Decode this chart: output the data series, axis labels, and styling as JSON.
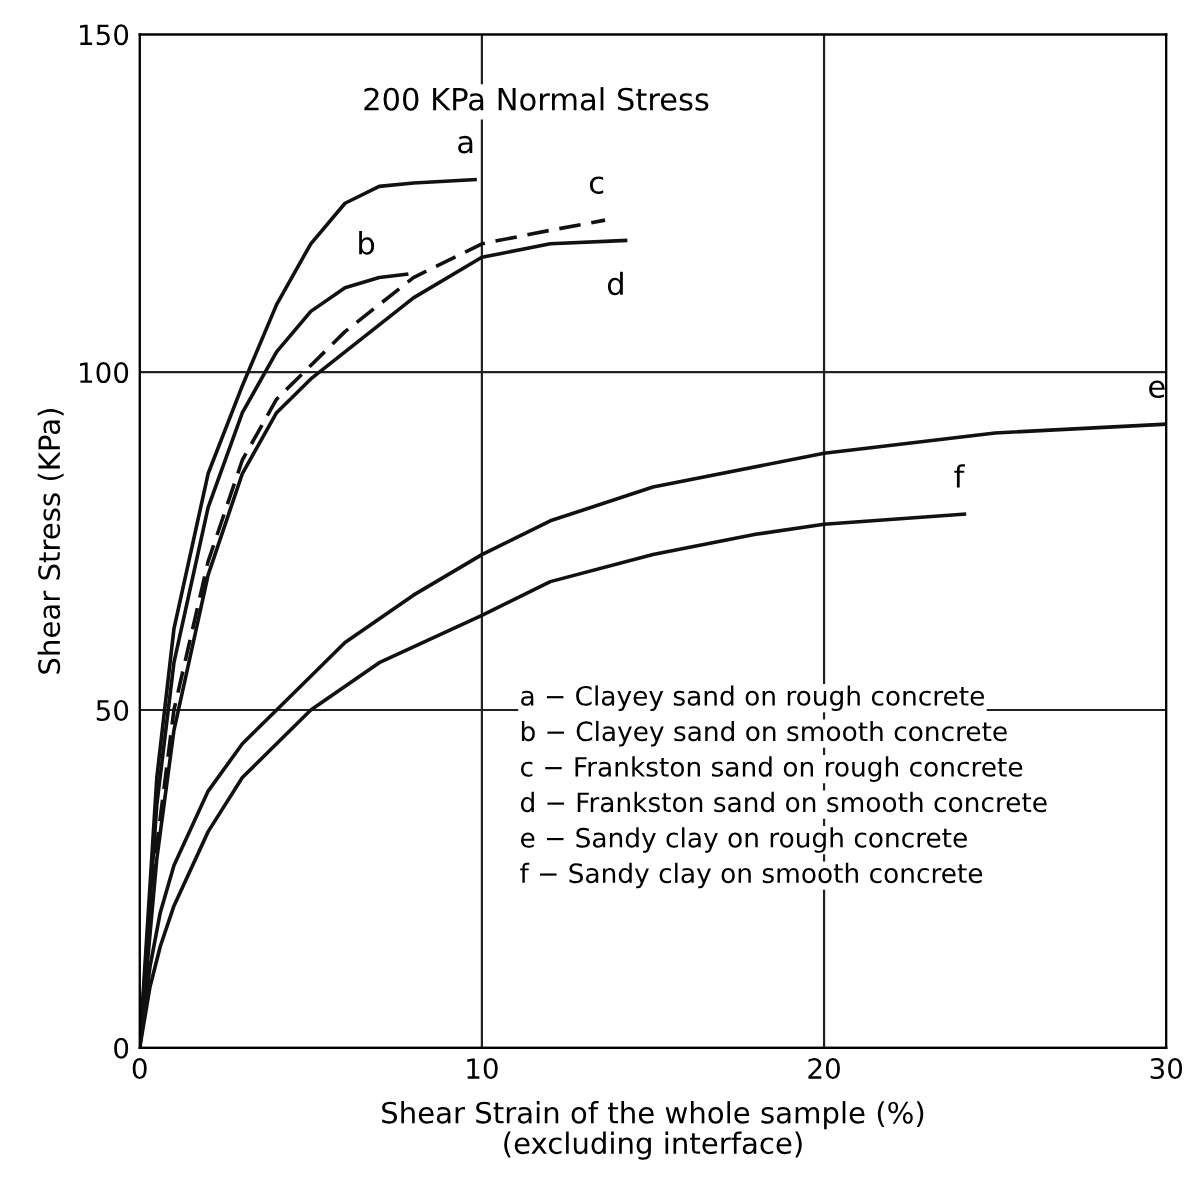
{
  "chart_data": {
    "type": "line",
    "title": "200 KPa Normal Stress",
    "xlabel": "Shear Strain of the whole sample (%)\n(excluding interface)",
    "ylabel": "Shear Stress (KPa)",
    "xlim": [
      0,
      30
    ],
    "ylim": [
      0,
      150
    ],
    "xticks": [
      0,
      10,
      20,
      30
    ],
    "yticks": [
      0,
      50,
      100,
      150
    ],
    "grid": true,
    "marker": "none",
    "series": [
      {
        "name": "a",
        "color": "#111111",
        "line_style": "solid",
        "x": [
          0,
          0.5,
          1,
          2,
          3,
          4,
          5,
          6,
          7,
          8,
          9.8
        ],
        "values": [
          0,
          40,
          62,
          85,
          98,
          110,
          119,
          125,
          127.5,
          128,
          128.5
        ]
      },
      {
        "name": "b",
        "color": "#111111",
        "line_style": "solid",
        "x": [
          0,
          0.5,
          1,
          2,
          3,
          4,
          5,
          6,
          7,
          7.8
        ],
        "values": [
          0,
          36,
          57,
          80,
          94,
          103,
          109,
          112.5,
          114,
          114.5
        ]
      },
      {
        "name": "c",
        "color": "#111111",
        "line_style": "dashed",
        "x": [
          0,
          0.5,
          1,
          2,
          3,
          4,
          5,
          6,
          8,
          10,
          12,
          13.6
        ],
        "values": [
          0,
          30,
          50,
          72,
          87,
          96,
          101,
          106,
          114,
          119,
          121,
          122.5
        ]
      },
      {
        "name": "d",
        "color": "#111111",
        "line_style": "solid",
        "x": [
          0,
          0.5,
          1,
          2,
          3,
          4,
          5,
          6,
          8,
          10,
          12,
          14.2
        ],
        "values": [
          0,
          28,
          47,
          70,
          85,
          94,
          99,
          103,
          111,
          117,
          119,
          119.5
        ]
      },
      {
        "name": "e",
        "color": "#111111",
        "line_style": "solid",
        "x": [
          0,
          0.3,
          0.6,
          1,
          2,
          3,
          4,
          6,
          8,
          10,
          12,
          15,
          20,
          25,
          30
        ],
        "values": [
          0,
          12,
          20,
          27,
          38,
          45,
          50,
          60,
          67,
          73,
          78,
          83,
          88,
          91,
          92.3
        ]
      },
      {
        "name": "f",
        "color": "#111111",
        "line_style": "solid",
        "x": [
          0,
          0.3,
          0.6,
          1,
          2,
          3,
          4,
          5,
          7,
          10,
          12,
          15,
          18,
          20,
          24.1
        ],
        "values": [
          0,
          9,
          15,
          21,
          32,
          40,
          45,
          50,
          57,
          64,
          69,
          73,
          76,
          77.5,
          79
        ]
      }
    ],
    "annotations": [
      "a − Clayey sand on rough concrete",
      "b − Clayey sand on smooth concrete",
      "c − Frankston sand on rough concrete",
      "d − Frankston sand on smooth concrete",
      "e − Sandy clay on rough concrete",
      "f − Sandy clay on smooth concrete"
    ]
  }
}
